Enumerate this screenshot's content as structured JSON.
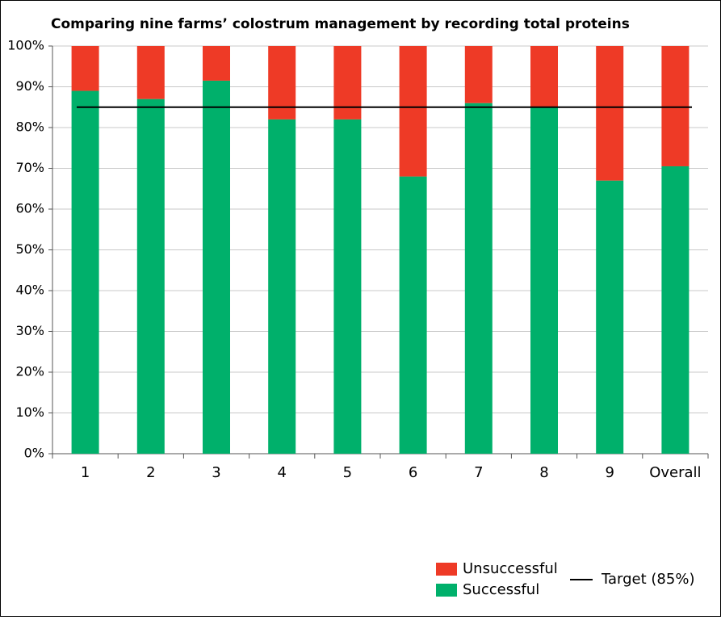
{
  "chart_data": {
    "type": "stacked_bar",
    "title": "Comparing nine farms’ colostrum management by recording total proteins",
    "categories": [
      "1",
      "2",
      "3",
      "4",
      "5",
      "6",
      "7",
      "8",
      "9",
      "Overall"
    ],
    "series": [
      {
        "name": "Successful",
        "color": "#00b06b",
        "values": [
          89,
          87,
          91.5,
          82,
          82,
          68,
          86,
          85,
          67,
          70.5
        ]
      },
      {
        "name": "Unsuccessful",
        "color": "#ee3a26",
        "values": [
          11,
          13,
          8.5,
          18,
          18,
          32,
          14,
          15,
          33,
          29.5
        ]
      }
    ],
    "target": {
      "name": "Target (85%)",
      "value": 85,
      "color": "#000000"
    },
    "ylim": [
      0,
      100
    ],
    "yticks": [
      {
        "value": 0,
        "label": "0%"
      },
      {
        "value": 10,
        "label": "10%"
      },
      {
        "value": 20,
        "label": "20%"
      },
      {
        "value": 30,
        "label": "30%"
      },
      {
        "value": 40,
        "label": "40%"
      },
      {
        "value": 50,
        "label": "50%"
      },
      {
        "value": 60,
        "label": "60%"
      },
      {
        "value": 70,
        "label": "70%"
      },
      {
        "value": 80,
        "label": "80%"
      },
      {
        "value": 90,
        "label": "90%"
      },
      {
        "value": 100,
        "label": "100%"
      }
    ],
    "grid": true
  }
}
